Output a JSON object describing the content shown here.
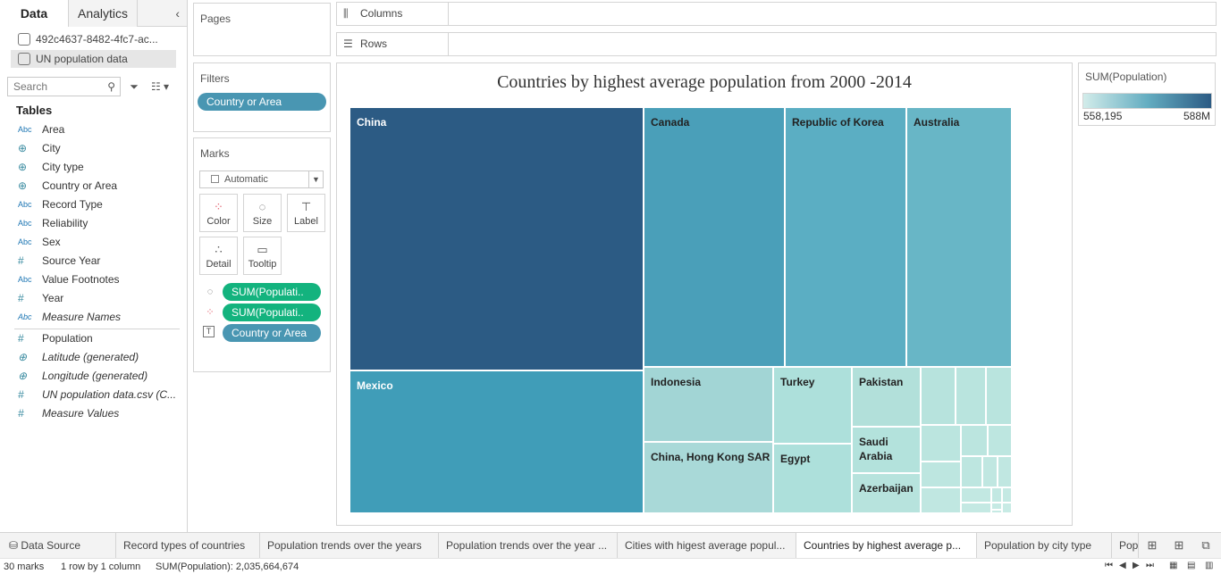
{
  "left_pane": {
    "tabs": [
      "Data",
      "Analytics"
    ],
    "collapse_icon": "‹",
    "datasources": [
      "492c4637-8482-4fc7-ac...",
      "UN population data"
    ],
    "search_placeholder": "Search",
    "tables_title": "Tables",
    "dimensions": [
      {
        "type": "Abc",
        "name": "Area"
      },
      {
        "type": "geo",
        "name": "City"
      },
      {
        "type": "geo",
        "name": "City type"
      },
      {
        "type": "geo",
        "name": "Country or Area"
      },
      {
        "type": "Abc",
        "name": "Record Type"
      },
      {
        "type": "Abc",
        "name": "Reliability"
      },
      {
        "type": "Abc",
        "name": "Sex"
      },
      {
        "type": "#",
        "name": "Source Year"
      },
      {
        "type": "Abc",
        "name": "Value Footnotes"
      },
      {
        "type": "#",
        "name": "Year"
      },
      {
        "type": "Abc",
        "name": "Measure Names"
      }
    ],
    "measures": [
      {
        "type": "#",
        "name": "Population"
      },
      {
        "type": "geo",
        "name": "Latitude (generated)"
      },
      {
        "type": "geo",
        "name": "Longitude (generated)"
      },
      {
        "type": "#",
        "name": "UN population data.csv (C..."
      },
      {
        "type": "#",
        "name": "Measure Values"
      }
    ]
  },
  "pages": {
    "title": "Pages"
  },
  "filters": {
    "title": "Filters",
    "pill": "Country or Area"
  },
  "marks": {
    "title": "Marks",
    "type": "Automatic",
    "buttons": [
      "Color",
      "Size",
      "Label",
      "Detail",
      "Tooltip"
    ],
    "pills": [
      "SUM(Populati..",
      "SUM(Populati..",
      "Country or Area"
    ]
  },
  "columns_label": "Columns",
  "rows_label": "Rows",
  "viz": {
    "title": "Countries by highest average population from 2000 -2014",
    "cells": [
      {
        "label": "China",
        "color": "#2c5b84"
      },
      {
        "label": "Mexico",
        "color": "#409db8"
      },
      {
        "label": "Canada",
        "color": "#4a9fb9"
      },
      {
        "label": "Republic of Korea",
        "color": "#5baec3"
      },
      {
        "label": "Australia",
        "color": "#68b6c6"
      },
      {
        "label": "Indonesia",
        "color": "#a2d5d5"
      },
      {
        "label": "China, Hong Kong SAR",
        "color": "#a9d9d8"
      },
      {
        "label": "Turkey",
        "color": "#ade0db"
      },
      {
        "label": "Egypt",
        "color": "#ade0db"
      },
      {
        "label": "Pakistan",
        "color": "#b2e0da"
      },
      {
        "label": "Saudi\nArabia",
        "color": "#b3e2dc"
      },
      {
        "label": "Azerbaijan",
        "color": "#b7e3dd"
      },
      {
        "label": "",
        "color": "#b7e3dd"
      },
      {
        "label": "",
        "color": "#b9e4de"
      },
      {
        "label": "",
        "color": "#b9e4de"
      },
      {
        "label": "",
        "color": "#bbe5df"
      },
      {
        "label": "",
        "color": "#bbe5df"
      },
      {
        "label": "",
        "color": "#bde6e0"
      },
      {
        "label": "",
        "color": "#bde6e0"
      },
      {
        "label": "",
        "color": "#bde6e0"
      },
      {
        "label": "",
        "color": "#c0e7e1"
      },
      {
        "label": "",
        "color": "#c0e7e1"
      },
      {
        "label": "",
        "color": "#c0e7e1"
      },
      {
        "label": "",
        "color": "#c2e8e2"
      },
      {
        "label": "",
        "color": "#c2e8e2"
      },
      {
        "label": "",
        "color": "#c4e9e3"
      },
      {
        "label": "",
        "color": "#c4e9e3"
      },
      {
        "label": "",
        "color": "#c6eae4"
      },
      {
        "label": "",
        "color": "#c6eae4"
      },
      {
        "label": "",
        "color": "#c8ebe5"
      }
    ]
  },
  "legend": {
    "title": "SUM(Population)",
    "min": "558,195",
    "max": "588M"
  },
  "sheet_tabs": [
    "Data Source",
    "Record types of countries",
    "Population trends over the years",
    "Population trends over the year ...",
    "Cities with higest average popul...",
    "Countries by highest average p...",
    "Population by  city type",
    "Pop"
  ],
  "active_sheet_index": 5,
  "status": {
    "marks": "30 marks",
    "rows_cols": "1 row by 1 column",
    "sum": "SUM(Population): 2,035,664,674"
  }
}
